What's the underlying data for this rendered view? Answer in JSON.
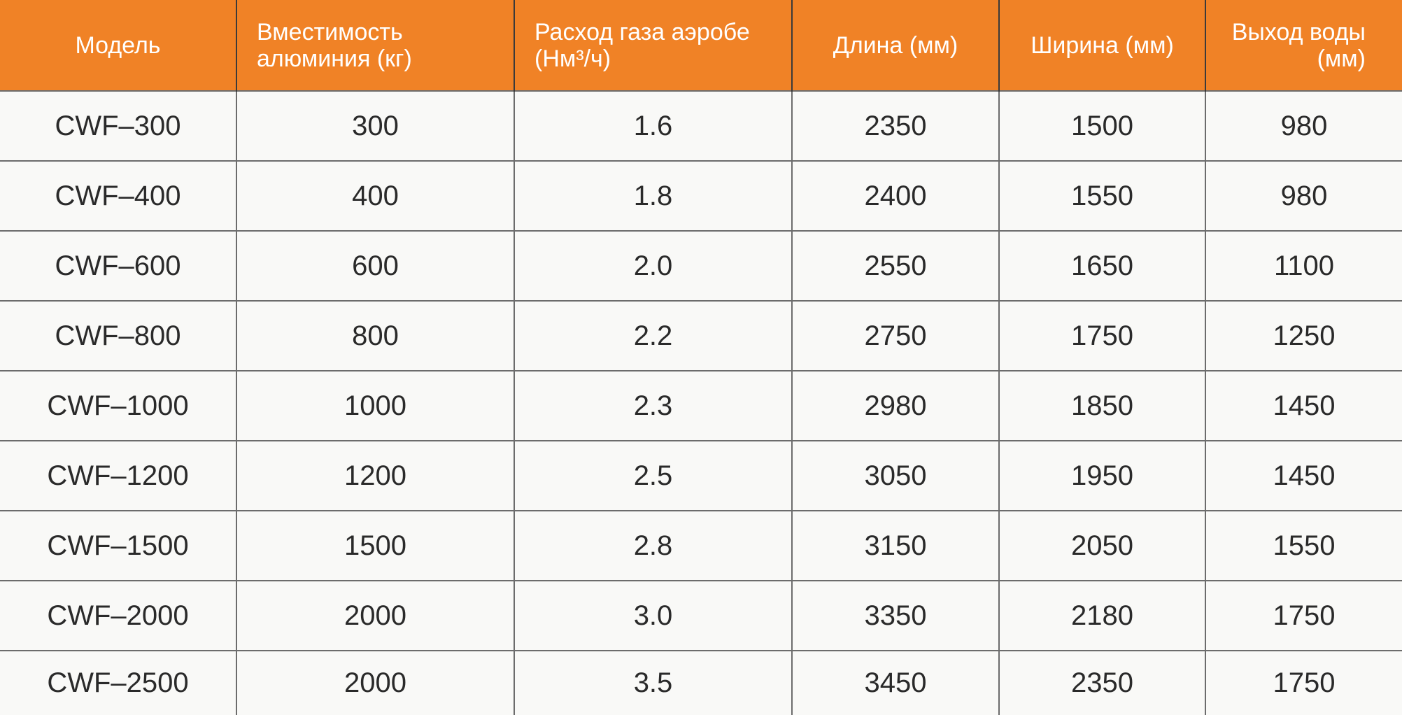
{
  "table": {
    "headers": [
      "Модель",
      "Вместимость алюминия (кг)",
      "Расход газа аэробе (Нм³/ч)",
      "Длина (мм)",
      "Ширина (мм)",
      "Выход воды (мм)"
    ],
    "rows": [
      [
        "CWF–300",
        "300",
        "1.6",
        "2350",
        "1500",
        "980"
      ],
      [
        "CWF–400",
        "400",
        "1.8",
        "2400",
        "1550",
        "980"
      ],
      [
        "CWF–600",
        "600",
        "2.0",
        "2550",
        "1650",
        "1100"
      ],
      [
        "CWF–800",
        "800",
        "2.2",
        "2750",
        "1750",
        "1250"
      ],
      [
        "CWF–1000",
        "1000",
        "2.3",
        "2980",
        "1850",
        "1450"
      ],
      [
        "CWF–1200",
        "1200",
        "2.5",
        "3050",
        "1950",
        "1450"
      ],
      [
        "CWF–1500",
        "1500",
        "2.8",
        "3150",
        "2050",
        "1550"
      ],
      [
        "CWF–2000",
        "2000",
        "3.0",
        "3350",
        "2180",
        "1750"
      ],
      [
        "CWF–2500",
        "2000",
        "3.5",
        "3450",
        "2350",
        "1750"
      ]
    ]
  },
  "colors": {
    "header_background": "#f08226",
    "header_text": "#ffffff",
    "cell_text": "#2a2a2a",
    "grid_line": "#6c6c6c"
  }
}
